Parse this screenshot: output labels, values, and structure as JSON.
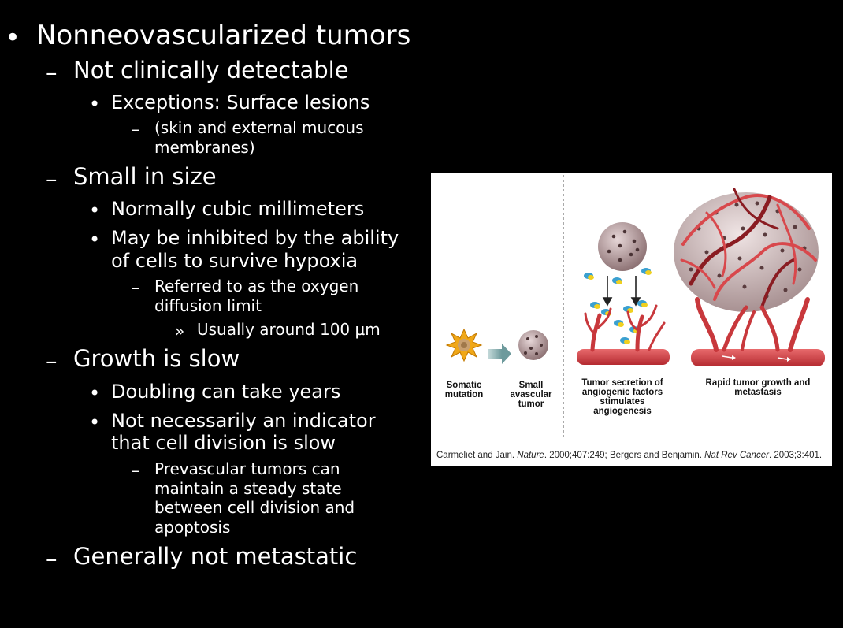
{
  "bullets": {
    "b1": "Nonneovascularized tumors",
    "b1_1": "Not clinically detectable",
    "b1_1_1": "Exceptions: Surface lesions",
    "b1_1_1_1a": "(skin and external mucous",
    "b1_1_1_1b": "membranes)",
    "b1_2": "Small in size",
    "b1_2_1": "Normally cubic millimeters",
    "b1_2_2a": "May be inhibited by the ability",
    "b1_2_2b": "of cells to survive hypoxia",
    "b1_2_2_1a": "Referred to as the oxygen",
    "b1_2_2_1b": "diffusion limit",
    "b1_2_2_1_1": "Usually around 100 µm",
    "b1_3": "Growth is slow",
    "b1_3_1": "Doubling can take years",
    "b1_3_2a": "Not necessarily an indicator",
    "b1_3_2b": "that cell division is slow",
    "b1_3_2_1a": "Prevascular tumors can",
    "b1_3_2_1b": "maintain a steady state",
    "b1_3_2_1c": "between cell division and",
    "b1_3_2_1d": "apoptosis",
    "b1_4": "Generally not metastatic"
  },
  "markers": {
    "dot": "•",
    "dash": "–",
    "raquo": "»"
  },
  "figure": {
    "captions": {
      "somatic_1": "Somatic",
      "somatic_2": "mutation",
      "small_1": "Small",
      "small_2": "avascular",
      "small_3": "tumor",
      "secretion_1": "Tumor secretion of",
      "secretion_2": "angiogenic factors",
      "secretion_3": "stimulates",
      "secretion_4": "angiogenesis",
      "rapid_1": "Rapid tumor growth and",
      "rapid_2": "metastasis"
    },
    "citation": {
      "p1": "Carmeliet and Jain. ",
      "j1": "Nature",
      "p2": ". 2000;407:249; Bergers and Benjamin. ",
      "j2": "Nat Rev Cancer",
      "p3": ". 2003;3:401."
    },
    "colors": {
      "vessel": "#d8484c",
      "vessel_dark": "#8a1c22",
      "tumor": "#c9b0b2",
      "mutation": "#e8a020"
    }
  }
}
